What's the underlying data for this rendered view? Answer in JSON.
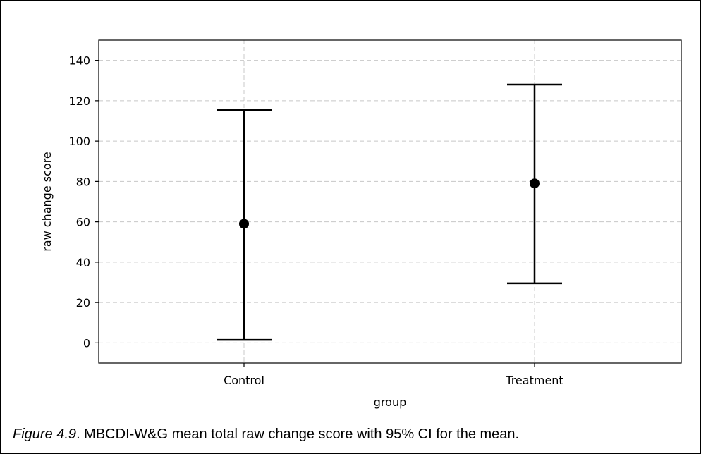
{
  "caption": {
    "figure_label": "Figure 4.9",
    "text": ". MBCDI-W&G mean total raw change score with 95% CI for the mean."
  },
  "chart_data": {
    "type": "errorbar",
    "title": "",
    "xlabel": "group",
    "ylabel": "raw change score",
    "categories": [
      "Control",
      "Treatment"
    ],
    "means": [
      59,
      79
    ],
    "ci_lower": [
      1.5,
      29.5
    ],
    "ci_upper": [
      115.5,
      128
    ],
    "ylim": [
      -10,
      150
    ],
    "yticks": [
      0,
      20,
      40,
      60,
      80,
      100,
      120,
      140
    ],
    "grid": true,
    "grid_style": "dashed",
    "colors": {
      "marks": "#000000",
      "grid": "#c8c8c8"
    }
  }
}
